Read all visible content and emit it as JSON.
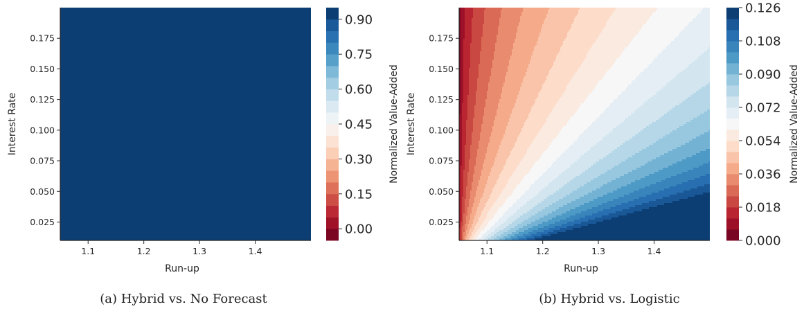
{
  "chart_data": [
    {
      "type": "heatmap",
      "subtype": "filled-contour",
      "caption": "(a) Hybrid vs. No Forecast",
      "xlabel": "Run-up",
      "ylabel": "Interest Rate",
      "xlim": [
        1.05,
        1.5
      ],
      "ylim": [
        0.01,
        0.2
      ],
      "x_ticks": [
        1.1,
        1.2,
        1.3,
        1.4
      ],
      "x_tick_labels": [
        "1.1",
        "1.2",
        "1.3",
        "1.4"
      ],
      "y_ticks": [
        0.025,
        0.05,
        0.075,
        0.1,
        0.125,
        0.15,
        0.175
      ],
      "y_tick_labels": [
        "0.025",
        "0.050",
        "0.075",
        "0.100",
        "0.125",
        "0.150",
        "0.175"
      ],
      "colorbar": {
        "label": "Normalized Value-Added",
        "min": -0.05,
        "max": 0.95,
        "levels": 20,
        "ticks": [
          0.0,
          0.15,
          0.3,
          0.45,
          0.6,
          0.75,
          0.9
        ],
        "tick_labels": [
          "0.00",
          "0.15",
          "0.30",
          "0.45",
          "0.60",
          "0.75",
          "0.90"
        ],
        "colormap": "RdBu"
      },
      "field": {
        "value_at_corner": 0.95,
        "intercept": 1.05,
        "peak_value": 0.95
      }
    },
    {
      "type": "heatmap",
      "subtype": "filled-contour",
      "caption": "(b) Hybrid vs. Logistic",
      "xlabel": "Run-up",
      "ylabel": "Interest Rate",
      "xlim": [
        1.05,
        1.5
      ],
      "ylim": [
        0.01,
        0.2
      ],
      "x_ticks": [
        1.1,
        1.2,
        1.3,
        1.4
      ],
      "x_tick_labels": [
        "1.1",
        "1.2",
        "1.3",
        "1.4"
      ],
      "y_ticks": [
        0.025,
        0.05,
        0.075,
        0.1,
        0.125,
        0.15,
        0.175
      ],
      "y_tick_labels": [
        "0.025",
        "0.050",
        "0.075",
        "0.100",
        "0.125",
        "0.150",
        "0.175"
      ],
      "colorbar": {
        "label": "Normalized Value-Added",
        "min": 0.0,
        "max": 0.126,
        "levels": 21,
        "ticks": [
          0.0,
          0.018,
          0.036,
          0.054,
          0.072,
          0.09,
          0.108,
          0.126
        ],
        "tick_labels": [
          "0.000",
          "0.018",
          "0.036",
          "0.054",
          "0.072",
          "0.090",
          "0.108",
          "0.126"
        ],
        "colormap": "RdBu"
      },
      "field": {
        "value_at_corner": 0.0,
        "intercept": 1.05,
        "peak_value": 0.126
      }
    }
  ],
  "colors": {
    "rdbu": [
      "#67001f",
      "#b2182b",
      "#d6604d",
      "#f4a582",
      "#fddbc7",
      "#f7f7f7",
      "#d1e5f0",
      "#92c5de",
      "#4393c3",
      "#2166ac",
      "#053061"
    ]
  }
}
